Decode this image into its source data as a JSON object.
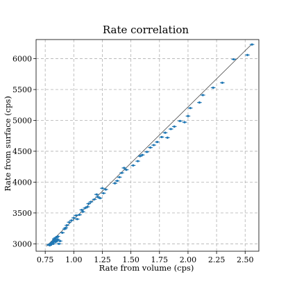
{
  "chart_data": {
    "type": "scatter",
    "title": "Rate correlation",
    "xlabel": "Rate from volume (cps)",
    "ylabel": "Rate from surface (cps)",
    "xlim": [
      0.67,
      2.62
    ],
    "ylim": [
      2880,
      6310
    ],
    "xticks": [
      0.75,
      1.0,
      1.25,
      1.5,
      1.75,
      2.0,
      2.25,
      2.5
    ],
    "xtick_labels": [
      "0.75",
      "1.00",
      "1.25",
      "1.50",
      "1.75",
      "2.00",
      "2.25",
      "2.50"
    ],
    "yticks": [
      3000,
      3500,
      4000,
      4500,
      5000,
      5500,
      6000
    ],
    "ytick_labels": [
      "3000",
      "3500",
      "4000",
      "4500",
      "5000",
      "5500",
      "6000"
    ],
    "grid": true,
    "fit_line": {
      "x": [
        0.76,
        2.55
      ],
      "y": [
        2960,
        6220
      ]
    },
    "point_color": "#1f77b4",
    "points": [
      [
        0.78,
        2985,
        0.02
      ],
      [
        0.79,
        2975,
        0.02
      ],
      [
        0.8,
        3000,
        0.02
      ],
      [
        0.8,
        2990,
        0.02
      ],
      [
        0.81,
        3010,
        0.02
      ],
      [
        0.81,
        3020,
        0.02
      ],
      [
        0.82,
        3040,
        0.02
      ],
      [
        0.82,
        3000,
        0.02
      ],
      [
        0.83,
        3060,
        0.02
      ],
      [
        0.83,
        3080,
        0.02
      ],
      [
        0.84,
        3095,
        0.02
      ],
      [
        0.84,
        3030,
        0.02
      ],
      [
        0.85,
        3050,
        0.02
      ],
      [
        0.85,
        3105,
        0.02
      ],
      [
        0.86,
        3070,
        0.02
      ],
      [
        0.86,
        3120,
        0.02
      ],
      [
        0.87,
        3000,
        0.02
      ],
      [
        0.88,
        3045,
        0.02
      ],
      [
        0.9,
        3180,
        0.02
      ],
      [
        0.92,
        3240,
        0.02
      ],
      [
        0.93,
        3260,
        0.02
      ],
      [
        0.94,
        3300,
        0.02
      ],
      [
        0.96,
        3350,
        0.02
      ],
      [
        0.98,
        3380,
        0.02
      ],
      [
        1.0,
        3420,
        0.02
      ],
      [
        1.02,
        3460,
        0.02
      ],
      [
        1.03,
        3400,
        0.02
      ],
      [
        1.05,
        3470,
        0.02
      ],
      [
        1.07,
        3550,
        0.02
      ],
      [
        1.08,
        3520,
        0.02
      ],
      [
        1.1,
        3580,
        0.02
      ],
      [
        1.12,
        3600,
        0.02
      ],
      [
        1.13,
        3650,
        0.02
      ],
      [
        1.15,
        3680,
        0.02
      ],
      [
        1.18,
        3720,
        0.02
      ],
      [
        1.2,
        3800,
        0.02
      ],
      [
        1.21,
        3760,
        0.02
      ],
      [
        1.23,
        3740,
        0.02
      ],
      [
        1.25,
        3900,
        0.02
      ],
      [
        1.26,
        3820,
        0.02
      ],
      [
        1.28,
        3880,
        0.02
      ],
      [
        1.36,
        3980,
        0.02
      ],
      [
        1.38,
        4020,
        0.02
      ],
      [
        1.4,
        4080,
        0.02
      ],
      [
        1.42,
        4150,
        0.02
      ],
      [
        1.44,
        4230,
        0.02
      ],
      [
        1.46,
        4200,
        0.02
      ],
      [
        1.52,
        4270,
        0.02
      ],
      [
        1.56,
        4340,
        0.02
      ],
      [
        1.58,
        4420,
        0.02
      ],
      [
        1.6,
        4440,
        0.02
      ],
      [
        1.64,
        4490,
        0.02
      ],
      [
        1.67,
        4560,
        0.02
      ],
      [
        1.7,
        4600,
        0.02
      ],
      [
        1.73,
        4650,
        0.02
      ],
      [
        1.77,
        4730,
        0.02
      ],
      [
        1.8,
        4800,
        0.02
      ],
      [
        1.82,
        4720,
        0.02
      ],
      [
        1.85,
        4860,
        0.02
      ],
      [
        1.88,
        4900,
        0.02
      ],
      [
        1.93,
        4990,
        0.02
      ],
      [
        1.97,
        4970,
        0.02
      ],
      [
        2.0,
        5070,
        0.02
      ],
      [
        2.02,
        5200,
        0.02
      ],
      [
        2.1,
        5290,
        0.02
      ],
      [
        2.13,
        5410,
        0.02
      ],
      [
        2.22,
        5530,
        0.02
      ],
      [
        2.3,
        5610,
        0.02
      ],
      [
        2.4,
        5990,
        0.02
      ],
      [
        2.52,
        6060,
        0.02
      ],
      [
        2.56,
        6230,
        0.02
      ]
    ]
  }
}
